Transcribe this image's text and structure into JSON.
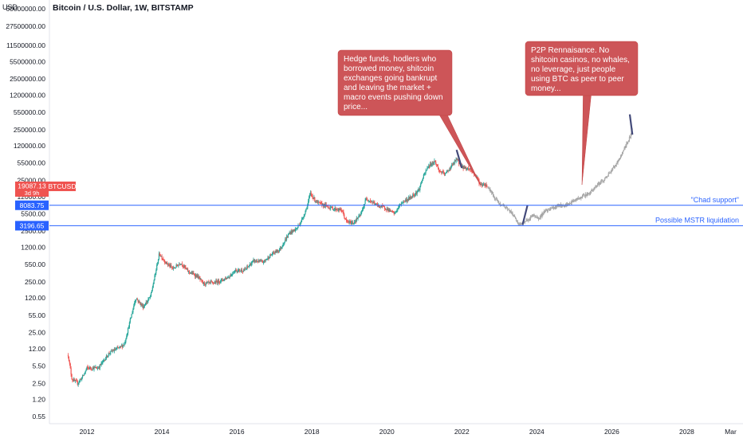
{
  "header": {
    "currency": "USD",
    "title": "Bitcoin / U.S. Dollar, 1W, BITSTAMP"
  },
  "chart_data": {
    "type": "candlestick",
    "title": "Bitcoin / U.S. Dollar, 1W, BITSTAMP",
    "y_scale": "log",
    "ylim": [
      0.4,
      90000000
    ],
    "xlim": [
      2011.0,
      2029.5
    ],
    "y_ticks": [
      "60000000.00",
      "27500000.00",
      "11500000.00",
      "5500000.00",
      "2500000.00",
      "1200000.00",
      "550000.00",
      "250000.00",
      "120000.00",
      "55000.00",
      "25000.00",
      "12000.00",
      "5500.00",
      "2500.00",
      "1200.00",
      "550.00",
      "250.00",
      "120.00",
      "55.00",
      "25.00",
      "12.00",
      "5.50",
      "2.50",
      "1.20",
      "0.55"
    ],
    "x_ticks": [
      "2012",
      "2014",
      "2016",
      "2018",
      "2020",
      "2022",
      "2024",
      "2026",
      "2028",
      "Mar"
    ],
    "x_tick_years": [
      2012,
      2014,
      2016,
      2018,
      2020,
      2022,
      2024,
      2026,
      2028,
      2029.17
    ],
    "current_price": {
      "label": "19087.13",
      "countdown": "3d 9h",
      "symbol": "BTCUSD",
      "value": 19087.13,
      "color": "#ef5350"
    },
    "levels": [
      {
        "value": 8083.75,
        "label": "8083.75",
        "text": "\"Chad support\"",
        "color": "#2962ff"
      },
      {
        "value": 3196.65,
        "label": "3196.65",
        "text": "Possible MSTR liquidation",
        "color": "#2962ff"
      }
    ],
    "historical_path": [
      [
        2011.5,
        9
      ],
      [
        2011.6,
        3
      ],
      [
        2011.75,
        2.5
      ],
      [
        2011.9,
        3.5
      ],
      [
        2012.0,
        5
      ],
      [
        2012.3,
        5
      ],
      [
        2012.6,
        10
      ],
      [
        2012.9,
        13
      ],
      [
        2013.0,
        15
      ],
      [
        2013.2,
        60
      ],
      [
        2013.3,
        120
      ],
      [
        2013.5,
        80
      ],
      [
        2013.7,
        130
      ],
      [
        2013.85,
        450
      ],
      [
        2013.93,
        900
      ],
      [
        2014.1,
        600
      ],
      [
        2014.3,
        450
      ],
      [
        2014.5,
        600
      ],
      [
        2014.7,
        400
      ],
      [
        2014.95,
        320
      ],
      [
        2015.1,
        230
      ],
      [
        2015.4,
        240
      ],
      [
        2015.6,
        270
      ],
      [
        2015.8,
        320
      ],
      [
        2015.95,
        420
      ],
      [
        2016.2,
        420
      ],
      [
        2016.45,
        650
      ],
      [
        2016.7,
        610
      ],
      [
        2016.95,
        900
      ],
      [
        2017.15,
        1100
      ],
      [
        2017.4,
        2300
      ],
      [
        2017.6,
        2800
      ],
      [
        2017.75,
        4400
      ],
      [
        2017.88,
        8000
      ],
      [
        2017.96,
        14000
      ],
      [
        2018.05,
        11000
      ],
      [
        2018.15,
        9000
      ],
      [
        2018.35,
        8000
      ],
      [
        2018.55,
        7000
      ],
      [
        2018.8,
        6400
      ],
      [
        2018.92,
        3800
      ],
      [
        2019.1,
        3600
      ],
      [
        2019.3,
        5200
      ],
      [
        2019.45,
        11000
      ],
      [
        2019.55,
        10000
      ],
      [
        2019.75,
        8000
      ],
      [
        2019.95,
        7200
      ],
      [
        2020.2,
        5500
      ],
      [
        2020.4,
        9200
      ],
      [
        2020.6,
        11000
      ],
      [
        2020.85,
        16000
      ],
      [
        2020.97,
        29000
      ],
      [
        2021.1,
        47000
      ],
      [
        2021.28,
        60000
      ],
      [
        2021.4,
        38000
      ],
      [
        2021.55,
        33000
      ],
      [
        2021.72,
        47000
      ],
      [
        2021.86,
        65000
      ],
      [
        2022.0,
        46000
      ],
      [
        2022.2,
        42000
      ],
      [
        2022.4,
        29000
      ],
      [
        2022.5,
        20000
      ],
      [
        2022.6,
        21000
      ],
      [
        2022.68,
        19087
      ]
    ],
    "projection_path": [
      [
        2022.7,
        18500
      ],
      [
        2022.85,
        12000
      ],
      [
        2023.0,
        8500
      ],
      [
        2023.15,
        7600
      ],
      [
        2023.3,
        6000
      ],
      [
        2023.4,
        5000
      ],
      [
        2023.5,
        3300
      ],
      [
        2023.62,
        3800
      ],
      [
        2023.75,
        4000
      ],
      [
        2023.9,
        5200
      ],
      [
        2024.05,
        4500
      ],
      [
        2024.2,
        6000
      ],
      [
        2024.4,
        7000
      ],
      [
        2024.6,
        8000
      ],
      [
        2024.8,
        8300
      ],
      [
        2025.0,
        10000
      ],
      [
        2025.2,
        12000
      ],
      [
        2025.4,
        14000
      ],
      [
        2025.6,
        20000
      ],
      [
        2025.8,
        26000
      ],
      [
        2025.95,
        37000
      ],
      [
        2026.1,
        50000
      ],
      [
        2026.25,
        80000
      ],
      [
        2026.4,
        130000
      ],
      [
        2026.5,
        190000
      ],
      [
        2026.55,
        280000
      ]
    ],
    "fractal_segments": [
      {
        "x": [
          2021.86,
          2022.0
        ],
        "y": [
          100000,
          44000
        ]
      },
      {
        "x": [
          2023.62,
          2023.75
        ],
        "y": [
          3300,
          8000
        ]
      },
      {
        "x": [
          2026.48,
          2026.55
        ],
        "y": [
          500000,
          200000
        ]
      }
    ],
    "callouts": [
      {
        "id": "bear",
        "lines": [
          "Hedge funds, hodlers who",
          "borrowed money, shitcoin",
          "exchanges going bankrupt",
          "and leaving the market +",
          "macro events pushing down",
          "price..."
        ],
        "pointer_x": 2022.7,
        "pointer_y": 22000
      },
      {
        "id": "bull",
        "lines": [
          "P2P Rennaisance. No",
          "shitcoin casinos, no whales,",
          "no leverage, just people",
          "using BTC as peer to peer",
          "money..."
        ],
        "pointer_x": 2025.4,
        "pointer_y": 20000
      }
    ]
  }
}
